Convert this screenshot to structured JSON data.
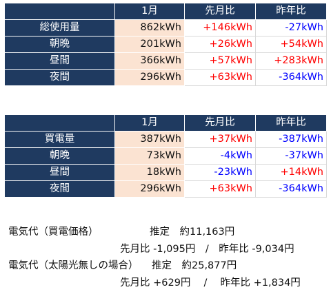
{
  "headers": {
    "col1": "1月",
    "col2": "先月比",
    "col3": "昨年比"
  },
  "table1": {
    "rows": [
      {
        "label": "総使用量",
        "cur": "862kWh",
        "mom": "+146kWh",
        "yoy": "-27kWh",
        "mom_sign": "pos",
        "yoy_sign": "neg"
      },
      {
        "label": "朝晩",
        "cur": "201kWh",
        "mom": "+26kWh",
        "yoy": "+54kWh",
        "mom_sign": "pos",
        "yoy_sign": "pos"
      },
      {
        "label": "昼間",
        "cur": "366kWh",
        "mom": "+57kWh",
        "yoy": "+283kWh",
        "mom_sign": "pos",
        "yoy_sign": "pos"
      },
      {
        "label": "夜間",
        "cur": "296kWh",
        "mom": "+63kWh",
        "yoy": "-364kWh",
        "mom_sign": "pos",
        "yoy_sign": "neg"
      }
    ]
  },
  "table2": {
    "rows": [
      {
        "label": "買電量",
        "cur": "387kWh",
        "mom": "+37kWh",
        "yoy": "-387kWh",
        "mom_sign": "pos",
        "yoy_sign": "neg"
      },
      {
        "label": "朝晩",
        "cur": "73kWh",
        "mom": "-4kWh",
        "yoy": "-37kWh",
        "mom_sign": "neg",
        "yoy_sign": "neg"
      },
      {
        "label": "昼間",
        "cur": "18kWh",
        "mom": "-23kWh",
        "yoy": "+14kWh",
        "mom_sign": "neg",
        "yoy_sign": "pos"
      },
      {
        "label": "夜間",
        "cur": "296kWh",
        "mom": "+63kWh",
        "yoy": "-364kWh",
        "mom_sign": "pos",
        "yoy_sign": "neg"
      }
    ]
  },
  "summary": {
    "purchase_label": "電気代（買電価格）",
    "purchase_estimate": "推定　約11,163円",
    "purchase_compare": "先月比 -1,095円　/　昨年比 -9,034円",
    "nosolar_label": "電気代（太陽光無しの場合）",
    "nosolar_estimate": "推定　約25,877円",
    "nosolar_compare": "先月比 +629円　 /　 昨年比 +1,834円"
  },
  "colors": {
    "header_bg": "#1f3a60",
    "current_bg": "#fbe3d2",
    "positive": "#ff0000",
    "negative": "#0000ff"
  }
}
